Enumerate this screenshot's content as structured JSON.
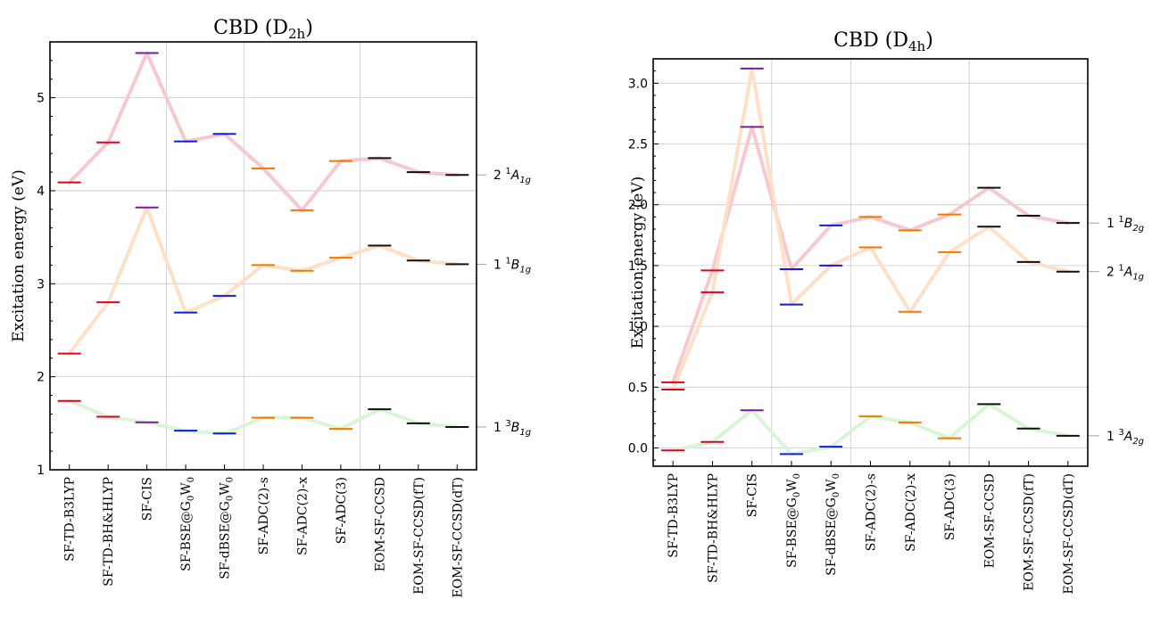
{
  "colors": {
    "dft": "#e3001b",
    "cis": "#7a1aa0",
    "bse": "#0a1ee6",
    "adc": "#f07800",
    "cc": "#111111",
    "curve_top": "#f7c9ce",
    "curve_mid": "#fde0c6",
    "curve_low": "#d7f7d4"
  },
  "chart_data": [
    {
      "type": "line",
      "title": "CBD (D2h)",
      "title_main": "CBD (D",
      "title_sub": "2h",
      "title_close": ")",
      "ylabel": "Excitation energy (eV)",
      "ylim": [
        1.0,
        5.6
      ],
      "yticks": [
        1,
        2,
        3,
        4,
        5
      ],
      "ytick_labels": [
        "1",
        "2",
        "3",
        "4",
        "5"
      ],
      "minor_per_major": 5,
      "grid": true,
      "categories": [
        "SF-TD-B3LYP",
        "SF-TD-BH&HLYP",
        "SF-CIS",
        "SF-BSE@G0W0",
        "SF-dBSE@G0W0",
        "SF-ADC(2)-s",
        "SF-ADC(2)-x",
        "SF-ADC(3)",
        "EOM-SF-CCSD",
        "EOM-SF-CCSD(fT)",
        "EOM-SF-CCSD(dT)"
      ],
      "category_labels": [
        {
          "main": "SF-TD-B3LYP"
        },
        {
          "main": "SF-TD-BH&HLYP"
        },
        {
          "main": "SF-CIS"
        },
        {
          "main": "SF-BSE@G",
          "sub1": "0",
          "mid": "W",
          "sub2": "0"
        },
        {
          "main": "SF-dBSE@G",
          "sub1": "0",
          "mid": "W",
          "sub2": "0"
        },
        {
          "main": "SF-ADC(2)-s"
        },
        {
          "main": "SF-ADC(2)-x"
        },
        {
          "main": "SF-ADC(3)"
        },
        {
          "main": "EOM-SF-CCSD"
        },
        {
          "main": "EOM-SF-CCSD(fT)"
        },
        {
          "main": "EOM-SF-CCSD(dT)"
        }
      ],
      "vgroup_lines_after": [
        2,
        4,
        7
      ],
      "bar_colors": [
        "dft",
        "dft",
        "cis",
        "bse",
        "bse",
        "adc",
        "adc",
        "adc",
        "cc",
        "cc",
        "cc"
      ],
      "series": [
        {
          "name": "2 1A1g",
          "label_num": "2",
          "label_sup": "1",
          "label_sym": "A",
          "label_sub": "1g",
          "curve": "curve_top",
          "values": [
            4.09,
            4.52,
            5.48,
            4.53,
            4.61,
            4.24,
            3.79,
            4.32,
            4.35,
            4.2,
            4.17
          ]
        },
        {
          "name": "1 1B1g",
          "label_num": "1",
          "label_sup": "1",
          "label_sym": "B",
          "label_sub": "1g",
          "curve": "curve_mid",
          "values": [
            2.25,
            2.8,
            3.82,
            2.69,
            2.87,
            3.2,
            3.14,
            3.28,
            3.41,
            3.25,
            3.21
          ]
        },
        {
          "name": "1 3B1g",
          "label_num": "1",
          "label_sup": "3",
          "label_sym": "B",
          "label_sub": "1g",
          "curve": "curve_low",
          "values": [
            1.74,
            1.57,
            1.51,
            1.42,
            1.39,
            1.56,
            1.56,
            1.44,
            1.65,
            1.5,
            1.46
          ]
        }
      ]
    },
    {
      "type": "line",
      "title": "CBD (D4h)",
      "title_main": "CBD (D",
      "title_sub": "4h",
      "title_close": ")",
      "ylabel": "Excitation energy (eV)",
      "ylim": [
        -0.15,
        3.2
      ],
      "yticks": [
        0.0,
        0.5,
        1.0,
        1.5,
        2.0,
        2.5,
        3.0
      ],
      "ytick_labels": [
        "0.0",
        "0.5",
        "1.0",
        "1.5",
        "2.0",
        "2.5",
        "3.0"
      ],
      "minor_per_major": 5,
      "grid": true,
      "categories": [
        "SF-TD-B3LYP",
        "SF-TD-BH&HLYP",
        "SF-CIS",
        "SF-BSE@G0W0",
        "SF-dBSE@G0W0",
        "SF-ADC(2)-s",
        "SF-ADC(2)-x",
        "SF-ADC(3)",
        "EOM-SF-CCSD",
        "EOM-SF-CCSD(fT)",
        "EOM-SF-CCSD(dT)"
      ],
      "category_labels": [
        {
          "main": "SF-TD-B3LYP"
        },
        {
          "main": "SF-TD-BH&HLYP"
        },
        {
          "main": "SF-CIS"
        },
        {
          "main": "SF-BSE@G",
          "sub1": "0",
          "mid": "W",
          "sub2": "0"
        },
        {
          "main": "SF-dBSE@G",
          "sub1": "0",
          "mid": "W",
          "sub2": "0"
        },
        {
          "main": "SF-ADC(2)-s"
        },
        {
          "main": "SF-ADC(2)-x"
        },
        {
          "main": "SF-ADC(3)"
        },
        {
          "main": "EOM-SF-CCSD"
        },
        {
          "main": "EOM-SF-CCSD(fT)"
        },
        {
          "main": "EOM-SF-CCSD(dT)"
        }
      ],
      "vgroup_lines_after": [
        2,
        4,
        7
      ],
      "bar_colors": [
        "dft",
        "dft",
        "cis",
        "bse",
        "bse",
        "adc",
        "adc",
        "adc",
        "cc",
        "cc",
        "cc"
      ],
      "series": [
        {
          "name": "1 1B2g",
          "label_num": "1",
          "label_sup": "1",
          "label_sym": "B",
          "label_sub": "2g",
          "curve": "curve_top",
          "values": [
            0.54,
            1.46,
            2.64,
            1.47,
            1.83,
            1.9,
            1.79,
            1.92,
            2.14,
            1.91,
            1.85
          ]
        },
        {
          "name": "2 1A1g",
          "label_num": "2",
          "label_sup": "1",
          "label_sym": "A",
          "label_sub": "1g",
          "curve": "curve_mid",
          "values": [
            0.48,
            1.28,
            3.12,
            1.18,
            1.5,
            1.65,
            1.12,
            1.61,
            1.82,
            1.53,
            1.45
          ]
        },
        {
          "name": "1 3A2g",
          "label_num": "1",
          "label_sup": "3",
          "label_sym": "A",
          "label_sub": "2g",
          "curve": "curve_low",
          "values": [
            -0.02,
            0.05,
            0.31,
            -0.05,
            0.01,
            0.26,
            0.21,
            0.08,
            0.36,
            0.16,
            0.1
          ]
        }
      ]
    }
  ]
}
